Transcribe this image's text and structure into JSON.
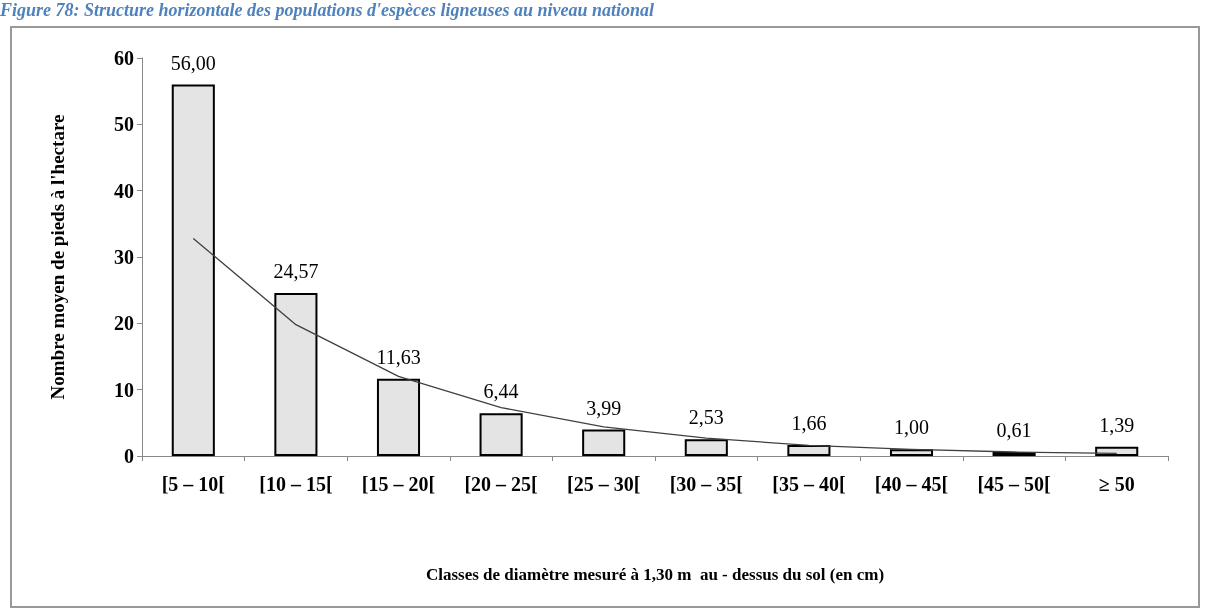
{
  "chart_data": {
    "type": "bar",
    "title": "Figure 78: Structure horizontale des populations d'espèces ligneuses au niveau national",
    "xlabel": "Classes de diamètre mesuré à 1,30 m  au - dessus du sol (en cm)",
    "ylabel": "Nombre moyen de pieds à l'hectare",
    "categories": [
      "[5 – 10[",
      "[10 – 15[",
      "[15 – 20[",
      "[20 – 25[",
      "[25 – 30[",
      "[30 – 35[",
      "[35 – 40[",
      "[40 – 45[",
      "[45 – 50[",
      "≥ 50"
    ],
    "series": [
      {
        "color": "#e4e4e4",
        "values": [
          56.0,
          24.57,
          11.63,
          6.44,
          3.99,
          2.53,
          1.66,
          1.0,
          0.61,
          1.39
        ],
        "value_labels": [
          "56,00",
          "24,57",
          "11,63",
          "6,44",
          "3,99",
          "2,53",
          "1,66",
          "1,00",
          "0,61",
          "1,39"
        ]
      },
      {
        "type": "line",
        "color": "#404040",
        "marker": "none",
        "line_style": "solid",
        "values": [
          32.8,
          19.8,
          12.0,
          7.3,
          4.4,
          2.7,
          1.6,
          1.0,
          0.6,
          0.4
        ]
      }
    ],
    "ylim": [
      0,
      60
    ],
    "yticks": [
      0,
      10,
      20,
      30,
      40,
      50,
      60
    ],
    "grid": false
  }
}
